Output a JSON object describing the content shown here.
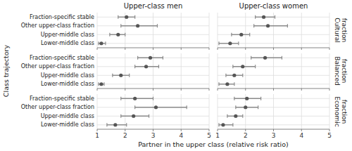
{
  "chart_data": {
    "type": "errorbar",
    "orientation": "horizontal",
    "xlabel": "Partner in the upper class (relative risk ratio)",
    "ylabel": "Class trajectory",
    "categories": [
      "Fraction-specific stable",
      "Other upper-class fraction",
      "Upper-middle class",
      "Lower-middle class"
    ],
    "xlim": [
      1,
      5
    ],
    "xticks": [
      1,
      2,
      3,
      4,
      5
    ],
    "grid": true,
    "color": "#555555",
    "row_titles": [
      "Cultural\nfraction",
      "Balanced\nfraction",
      "Economic\nfraction"
    ],
    "columns": [
      {
        "title": "Upper-class men",
        "rows": [
          {
            "values": [
              2.05,
              2.45,
              1.75,
              1.15
            ],
            "lo": [
              1.75,
              1.85,
              1.45,
              1.05
            ],
            "hi": [
              2.35,
              3.15,
              2.0,
              1.3
            ]
          },
          {
            "values": [
              2.9,
              2.75,
              1.85,
              1.15
            ],
            "lo": [
              2.45,
              2.35,
              1.55,
              1.05
            ],
            "hi": [
              3.35,
              3.2,
              2.15,
              1.25
            ]
          },
          {
            "values": [
              2.35,
              3.1,
              2.3,
              1.65
            ],
            "lo": [
              1.85,
              2.35,
              1.85,
              1.35
            ],
            "hi": [
              3.0,
              4.2,
              2.85,
              2.05
            ]
          }
        ]
      },
      {
        "title": "Upper-class women",
        "rows": [
          {
            "values": [
              2.65,
              2.8,
              1.85,
              1.45
            ],
            "lo": [
              2.35,
              2.3,
              1.5,
              1.05
            ],
            "hi": [
              3.05,
              3.5,
              2.15,
              1.75
            ]
          },
          {
            "values": [
              2.7,
              1.9,
              1.6,
              1.35
            ],
            "lo": [
              2.2,
              1.55,
              1.3,
              1.05
            ],
            "hi": [
              3.3,
              2.35,
              1.9,
              1.6
            ]
          },
          {
            "values": [
              2.05,
              2.0,
              1.65,
              1.2
            ],
            "lo": [
              1.6,
              1.65,
              1.35,
              1.05
            ],
            "hi": [
              2.55,
              2.45,
              1.9,
              1.55
            ]
          }
        ]
      }
    ]
  }
}
